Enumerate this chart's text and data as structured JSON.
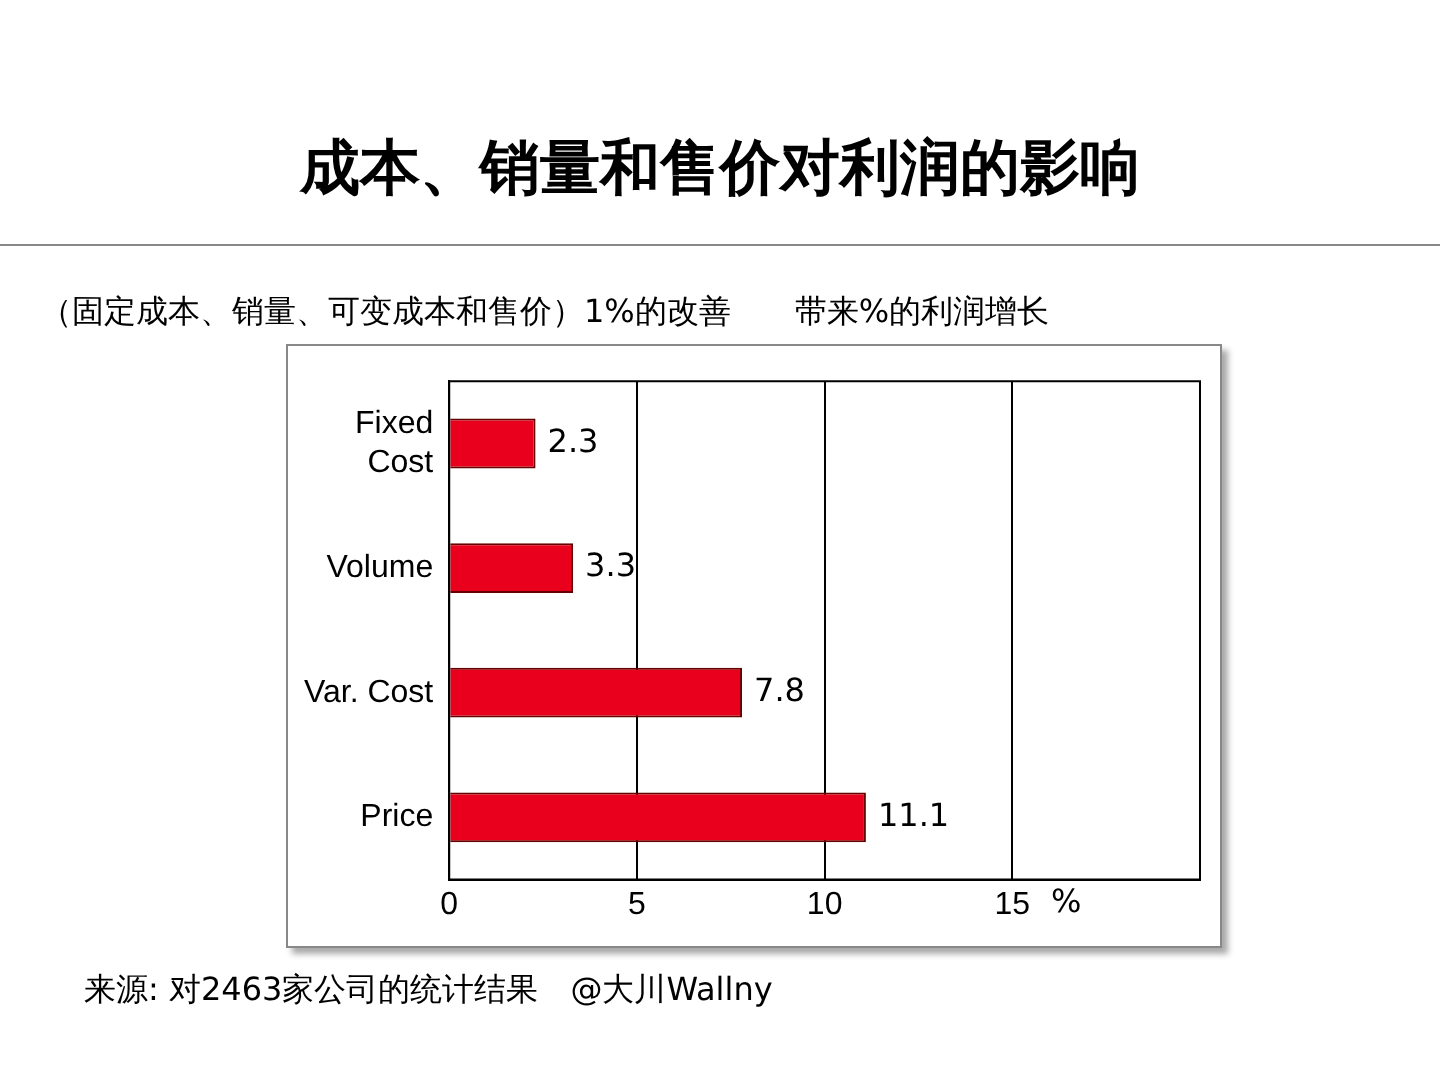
{
  "chart_data": {
    "type": "bar",
    "orientation": "horizontal",
    "title": "成本、销量和售价对利润的影响",
    "subtitle": "（固定成本、销量、可变成本和售价）1%的改善　　带来%的利润增长",
    "categories": [
      "Fixed\nCost",
      "Volume",
      "Var. Cost",
      "Price"
    ],
    "values": [
      2.3,
      3.3,
      7.8,
      11.1
    ],
    "color": "#e8001c",
    "data_labels": true,
    "xlim": [
      0,
      20
    ],
    "xticks": [
      0,
      5,
      10,
      15,
      {
        "value": 20,
        "label": null
      }
    ],
    "xlabel": "%",
    "grid": "x",
    "annotations": [
      "来源: 对2463家公司的统计结果　@大川Wallny"
    ]
  }
}
